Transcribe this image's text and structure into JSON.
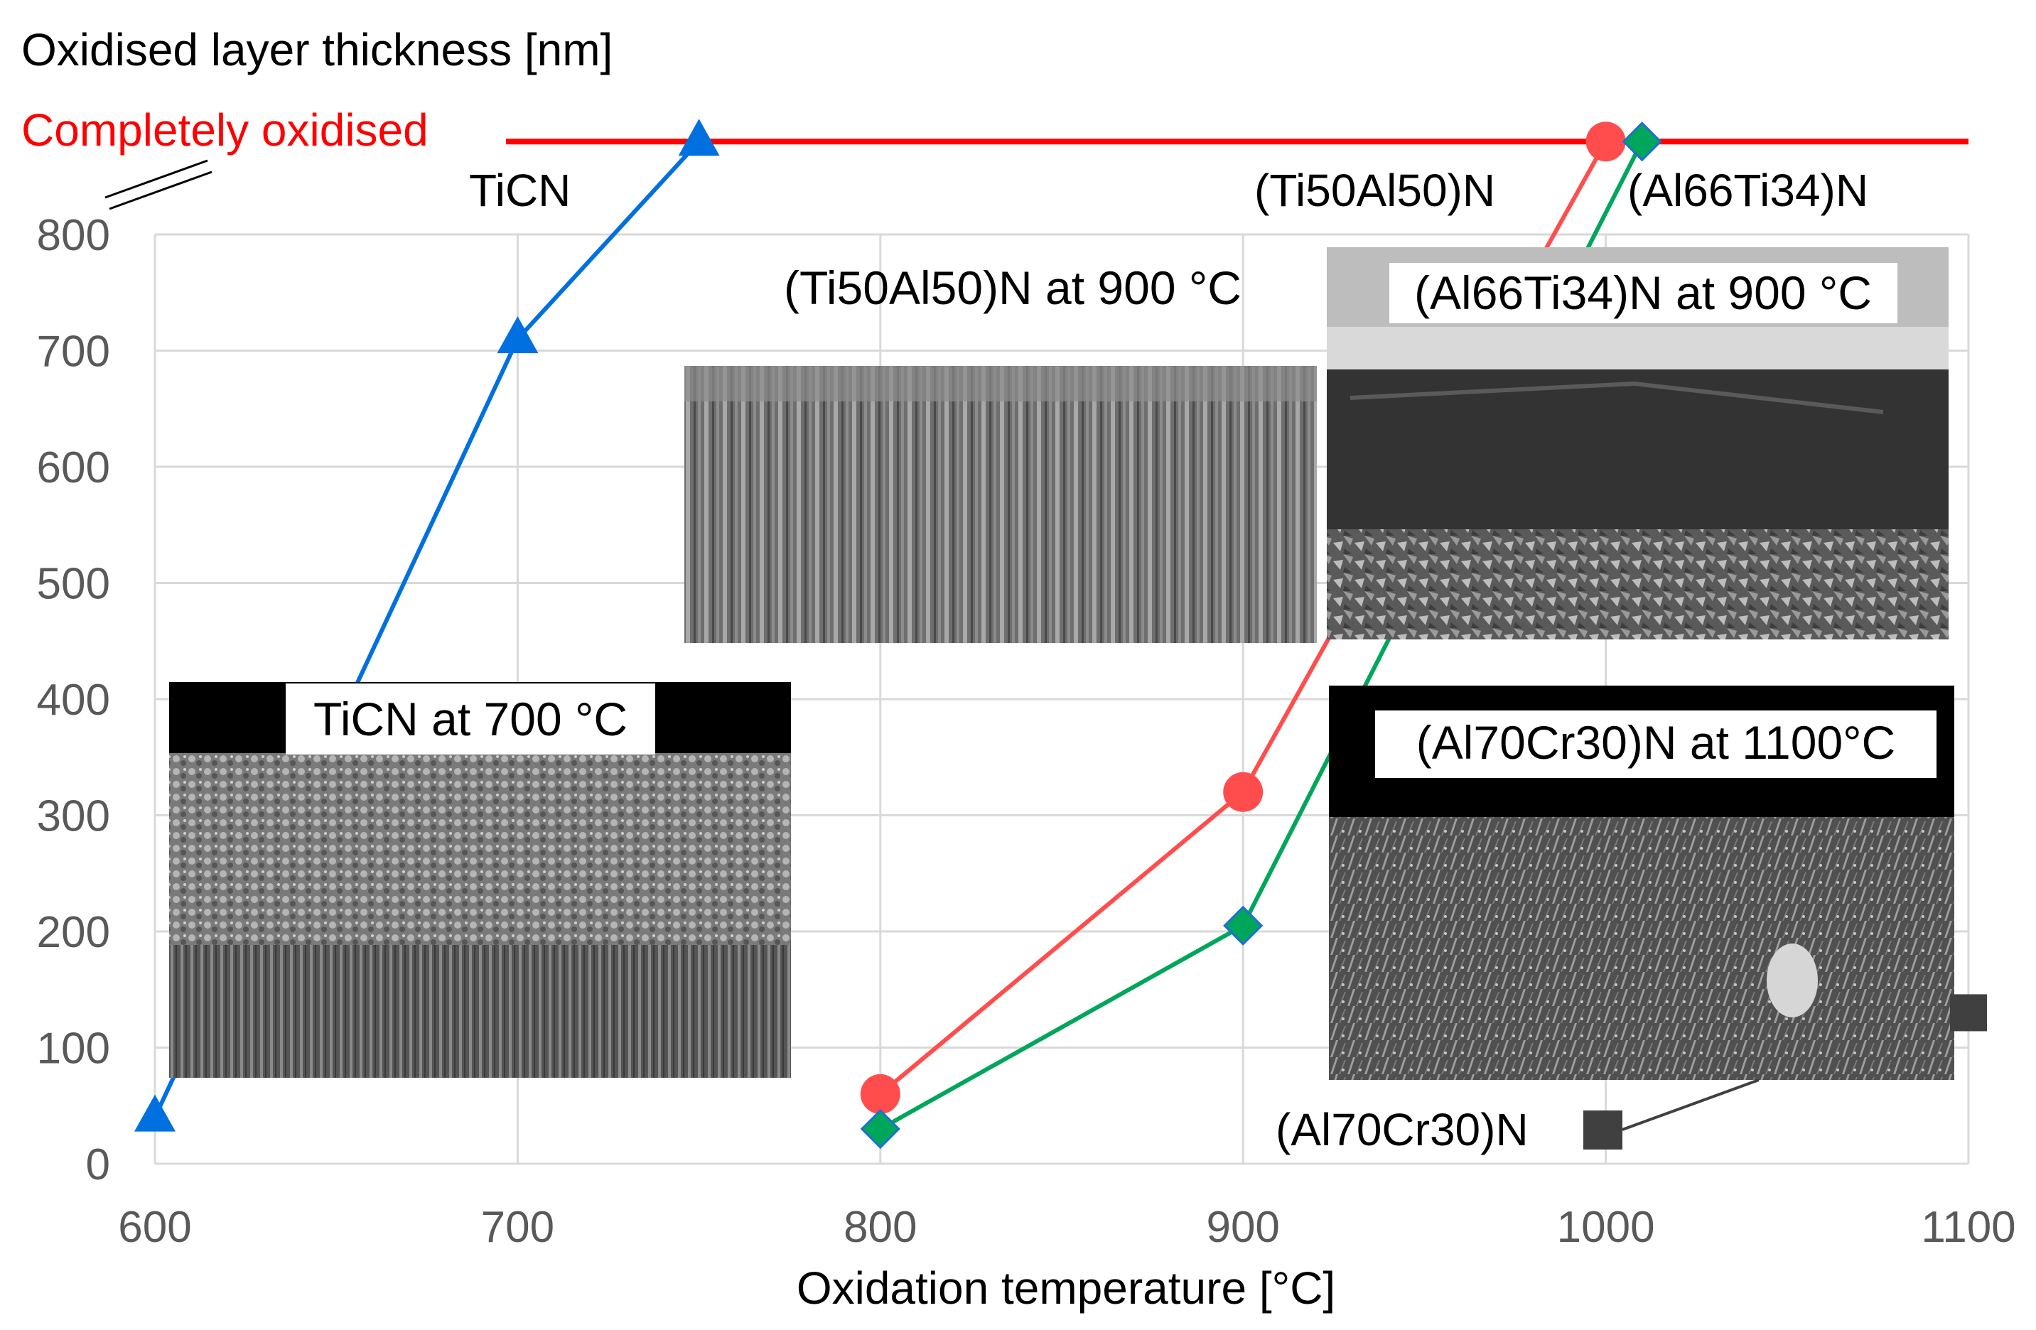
{
  "chart_data": {
    "type": "line",
    "ylabel": "Oxidised layer thickness [nm]",
    "xlabel": "Oxidation temperature [°C]",
    "completely_oxidised_label": "Completely oxidised",
    "completely_oxidised_value": 880,
    "xlim": [
      600,
      1100
    ],
    "ylim": [
      0,
      800
    ],
    "x_ticks": [
      "600",
      "700",
      "800",
      "900",
      "1000",
      "1100"
    ],
    "y_ticks": [
      "0",
      "100",
      "200",
      "300",
      "400",
      "500",
      "600",
      "700",
      "800"
    ],
    "series": [
      {
        "name": "TiCN",
        "color": "#0070e0",
        "marker": "triangle",
        "x": [
          600,
          700,
          750
        ],
        "y": [
          40,
          710,
          900
        ],
        "capped_last": true
      },
      {
        "name": "(Ti50Al50)N",
        "color": "#ff4d4d",
        "marker": "circle",
        "x": [
          800,
          900,
          1000
        ],
        "y": [
          60,
          320,
          900
        ],
        "capped_last": true
      },
      {
        "name": "(Al66Ti34)N",
        "color": "#00a65a",
        "marker": "diamond",
        "x": [
          800,
          900,
          1010
        ],
        "y": [
          30,
          205,
          900
        ],
        "capped_last": true
      },
      {
        "name": "(Al70Cr30)N",
        "color": "#404040",
        "marker": "square",
        "x": [
          1100
        ],
        "y": [
          130
        ]
      }
    ],
    "insets": [
      {
        "id": "ticn",
        "caption": "TiCN at 700 °C"
      },
      {
        "id": "tial",
        "caption": "(Ti50Al50)N at 900 °C"
      },
      {
        "id": "alti",
        "caption": "(Al66Ti34)N at 900 °C"
      },
      {
        "id": "alcr",
        "caption": "(Al70Cr30)N at 1100°C"
      }
    ],
    "legend_square_label": "(Al70Cr30)N"
  }
}
